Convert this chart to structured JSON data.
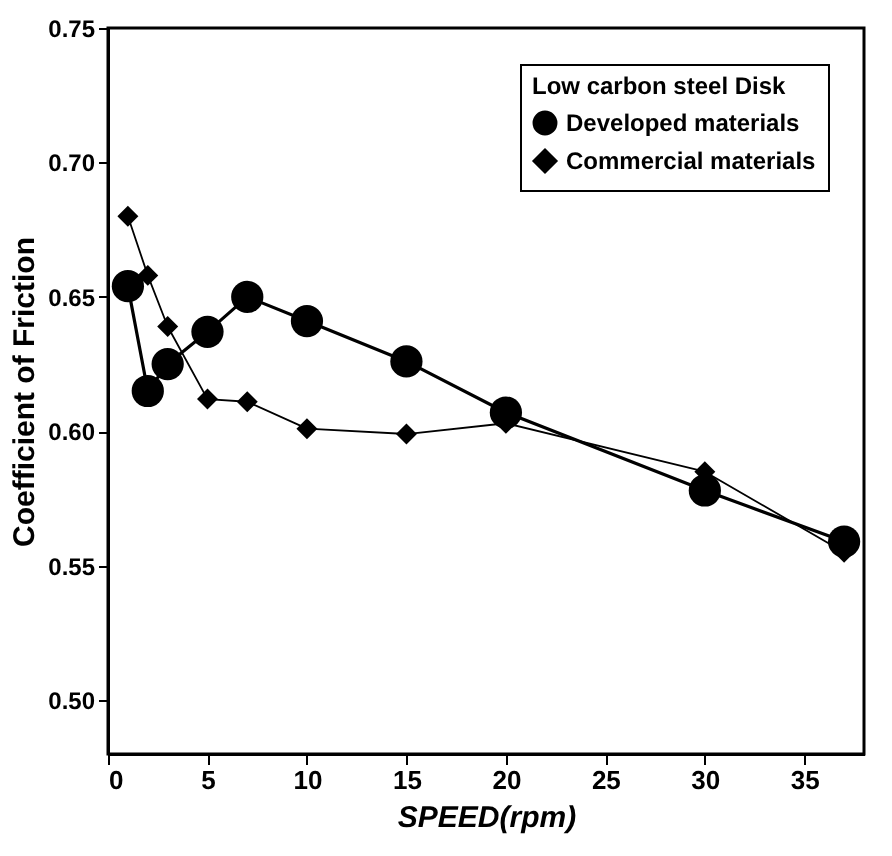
{
  "chart_data": {
    "type": "line",
    "xlabel": "SPEED(rpm)",
    "ylabel": "Coefficient of Friction",
    "legend_title": "Low carbon steel Disk",
    "legend": "top right",
    "x": [
      1,
      2,
      3,
      5,
      7,
      10,
      15,
      20,
      30,
      37
    ],
    "series": [
      {
        "name": "Developed materials",
        "color": "#000000",
        "marker": "circle",
        "values": [
          0.654,
          0.615,
          0.625,
          0.637,
          0.65,
          0.641,
          0.626,
          0.607,
          0.578,
          0.559
        ]
      },
      {
        "name": "Commercial materials",
        "color": "#000000",
        "marker": "diamond",
        "values": [
          0.68,
          0.658,
          0.639,
          0.612,
          0.611,
          0.601,
          0.599,
          0.603,
          0.585,
          0.555
        ]
      }
    ],
    "xlim": [
      0,
      38
    ],
    "xticks": [
      0,
      5,
      10,
      15,
      20,
      25,
      30,
      35
    ],
    "ylim": [
      0.48,
      0.75
    ],
    "yticks": [
      {
        "value": 0.5,
        "label": "0.50"
      },
      {
        "value": 0.55,
        "label": "0.55"
      },
      {
        "value": 0.6,
        "label": "0.60"
      },
      {
        "value": 0.65,
        "label": "0.65"
      },
      {
        "value": 0.7,
        "label": "0.70"
      },
      {
        "value": 0.75,
        "label": "0.75"
      }
    ],
    "grid": false
  }
}
